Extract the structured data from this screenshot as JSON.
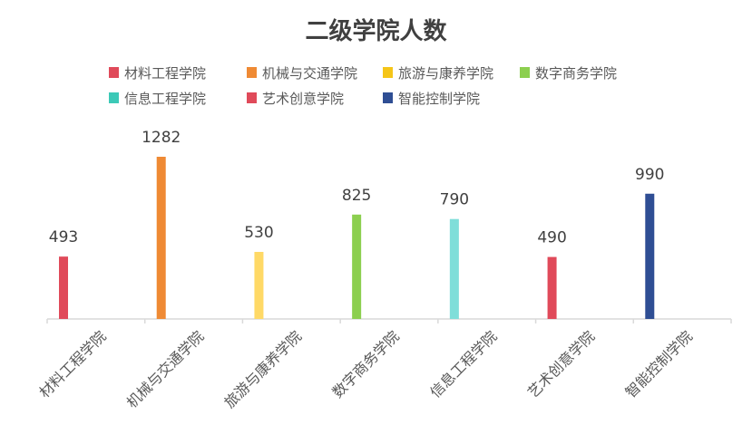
{
  "chart_data": {
    "type": "bar",
    "title": "二级学院人数",
    "categories": [
      "材料工程学院",
      "机械与交通学院",
      "旅游与康养学院",
      "数字商务学院",
      "信息工程学院",
      "艺术创意学院",
      "智能控制学院"
    ],
    "values": [
      493,
      1282,
      530,
      825,
      790,
      490,
      990
    ],
    "colors": [
      "#e04a5a",
      "#ef8a34",
      "#ffd966",
      "#8ccf4f",
      "#7fded9",
      "#e04a5a",
      "#2f4e94"
    ],
    "legend": {
      "position": "top",
      "entries": [
        {
          "name": "材料工程学院",
          "color": "#e04a5a"
        },
        {
          "name": "机械与交通学院",
          "color": "#ef8a34"
        },
        {
          "name": "旅游与康养学院",
          "color": "#f5c518"
        },
        {
          "name": "数字商务学院",
          "color": "#8ccf4f"
        },
        {
          "name": "信息工程学院",
          "color": "#3cc9b7"
        },
        {
          "name": "艺术创意学院",
          "color": "#e04a5a"
        },
        {
          "name": "智能控制学院",
          "color": "#2f4e94"
        }
      ]
    },
    "ylim": [
      0,
      1282
    ],
    "grid": false,
    "xlabel": "",
    "ylabel": ""
  }
}
